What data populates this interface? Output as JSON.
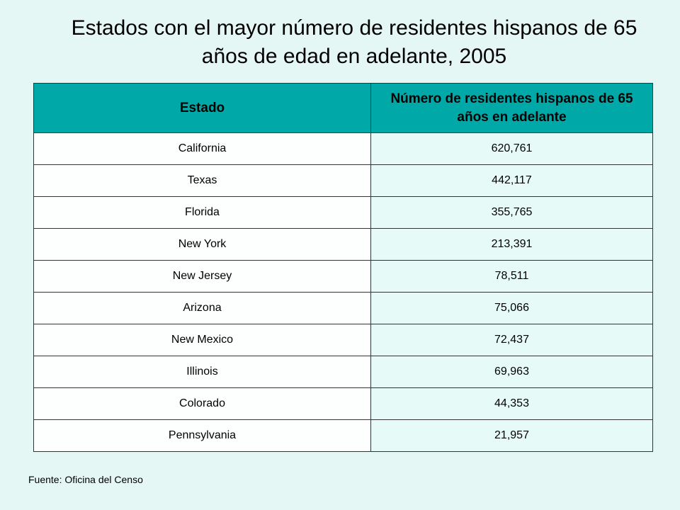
{
  "title": {
    "line1": "Estados con el mayor número de residentes hispanos de 65",
    "line2": "años de edad en adelante, 2005"
  },
  "table": {
    "headers": {
      "state": "Estado",
      "count": "Número de residentes hispanos de 65 años en adelante"
    },
    "rows": [
      {
        "state": "California",
        "count": "620,761"
      },
      {
        "state": "Texas",
        "count": "442,117"
      },
      {
        "state": "Florida",
        "count": "355,765"
      },
      {
        "state": "New York",
        "count": "213,391"
      },
      {
        "state": "New Jersey",
        "count": "78,511"
      },
      {
        "state": "Arizona",
        "count": "75,066"
      },
      {
        "state": "New Mexico",
        "count": "72,437"
      },
      {
        "state": "Illinois",
        "count": "69,963"
      },
      {
        "state": "Colorado",
        "count": "44,353"
      },
      {
        "state": "Pennsylvania",
        "count": "21,957"
      }
    ]
  },
  "source": "Fuente: Oficina del Censo",
  "colors": {
    "background": "#e5f7f4",
    "header_fill": "#00a9a8",
    "state_cell_fill": "#fcfffe",
    "count_cell_fill": "#e6fbf7"
  }
}
